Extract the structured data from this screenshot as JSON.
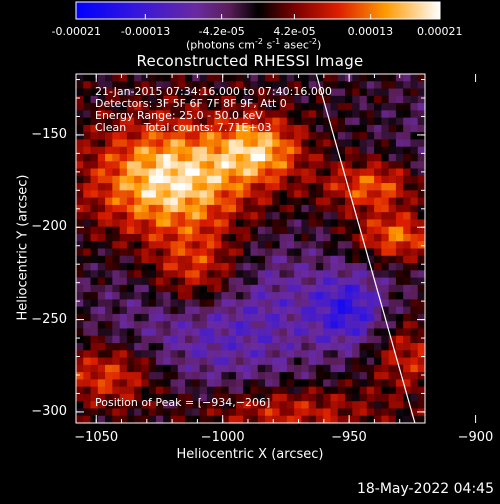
{
  "colorbar": {
    "ticks": [
      "-0.00021",
      "-0.00013",
      "-4.2e-05",
      "4.2e-05",
      "0.00013",
      "0.00021"
    ],
    "tick_values": [
      -0.00021,
      -0.00013,
      -4.2e-05,
      4.2e-05,
      0.00013,
      0.00021
    ],
    "range": [
      -0.00021,
      0.00021
    ],
    "units_prefix": "(photons cm",
    "units_sup1": "-2",
    "units_mid": " s",
    "units_sup2": "-1",
    "units_mid2": " asec",
    "units_sup3": "-2",
    "units_suffix": ")"
  },
  "chart_data": {
    "type": "heatmap",
    "title": "Reconstructed RHESSI Image",
    "xlabel": "Heliocentric X (arcsec)",
    "ylabel": "Heliocentric Y (arcsec)",
    "xlim": [
      -1058,
      -920
    ],
    "ylim": [
      -306,
      -117
    ],
    "xticks": [
      {
        "value": -1050,
        "label": "−1050"
      },
      {
        "value": -1000,
        "label": "−1000"
      },
      {
        "value": -950,
        "label": "−950"
      },
      {
        "value": -900,
        "label": "−900"
      }
    ],
    "yticks": [
      {
        "value": -150,
        "label": "−150"
      },
      {
        "value": -200,
        "label": "−200"
      },
      {
        "value": -250,
        "label": "−250"
      },
      {
        "value": -300,
        "label": "−300"
      }
    ],
    "annotations": [
      "21-Jan-2015 07:34:16.000 to 07:40:16.000",
      "Detectors: 3F 5F 6F 7F 8F 9F, Att 0",
      "Energy Range: 25.0 - 50.0 keV",
      "Clean     Total counts: 7.71E+03"
    ],
    "peak_label": "Position of Peak = [−934,−206]",
    "peak": [
      -934,
      -206
    ],
    "limb_line": [
      [
        -963,
        -117
      ],
      [
        -924,
        -306
      ]
    ],
    "sources": [
      {
        "x": -1020,
        "y": -175,
        "sx": 22,
        "sy": 22,
        "amp": 1.0
      },
      {
        "x": -1010,
        "y": -225,
        "sx": 14,
        "sy": 16,
        "amp": 0.75
      },
      {
        "x": -985,
        "y": -158,
        "sx": 12,
        "sy": 12,
        "amp": 0.7
      },
      {
        "x": -940,
        "y": -178,
        "sx": 14,
        "sy": 10,
        "amp": 0.65
      },
      {
        "x": -930,
        "y": -205,
        "sx": 12,
        "sy": 9,
        "amp": 0.7
      },
      {
        "x": -1045,
        "y": -280,
        "sx": 14,
        "sy": 12,
        "amp": 0.55
      },
      {
        "x": -975,
        "y": -300,
        "sx": 25,
        "sy": 10,
        "amp": 0.45
      },
      {
        "x": -925,
        "y": -270,
        "sx": 12,
        "sy": 14,
        "amp": 0.45
      },
      {
        "x": -1000,
        "y": -245,
        "sx": 30,
        "sy": 30,
        "amp": -0.55
      },
      {
        "x": -950,
        "y": -245,
        "sx": 10,
        "sy": 14,
        "amp": -0.6
      },
      {
        "x": -900,
        "y": -170,
        "sx": 25,
        "sy": 35,
        "amp": -0.3
      },
      {
        "x": -890,
        "y": -270,
        "sx": 20,
        "sy": 20,
        "amp": -0.2
      }
    ]
  },
  "footer": {
    "datestamp": "18-May-2022 04:45"
  }
}
